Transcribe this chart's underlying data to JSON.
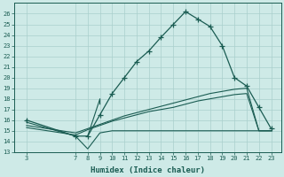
{
  "xlabel": "Humidex (Indice chaleur)",
  "ylabel": "",
  "x_ticks": [
    3,
    7,
    8,
    9,
    10,
    11,
    12,
    13,
    14,
    15,
    16,
    17,
    18,
    19,
    20,
    21,
    22,
    23
  ],
  "ylim": [
    13,
    27
  ],
  "yticks": [
    13,
    14,
    15,
    16,
    17,
    18,
    19,
    20,
    21,
    22,
    23,
    24,
    25,
    26
  ],
  "xlim": [
    2.0,
    23.8
  ],
  "background_color": "#ceeae7",
  "grid_color": "#aacfcc",
  "line_color": "#1a5c52",
  "main_curve_x": [
    3,
    7,
    8,
    9,
    10,
    11,
    12,
    13,
    14,
    15,
    16,
    17,
    18,
    19,
    20,
    21,
    22,
    23
  ],
  "main_curve_y": [
    16.0,
    14.5,
    14.5,
    16.5,
    18.5,
    20.0,
    21.5,
    22.5,
    23.8,
    25.0,
    26.2,
    25.5,
    24.8,
    23.0,
    20.0,
    19.2,
    17.2,
    15.2
  ],
  "line2_x": [
    3,
    7,
    8,
    9,
    10,
    11,
    12,
    13,
    14,
    15,
    16,
    17,
    18,
    19,
    20,
    21,
    22,
    23
  ],
  "line2_y": [
    15.5,
    14.8,
    15.2,
    15.6,
    16.0,
    16.4,
    16.7,
    17.0,
    17.3,
    17.6,
    17.9,
    18.2,
    18.5,
    18.7,
    18.9,
    19.0,
    15.0,
    15.0
  ],
  "line3_x": [
    3,
    7,
    8,
    9,
    10,
    11,
    12,
    13,
    14,
    15,
    16,
    17,
    18,
    19,
    20,
    21,
    22,
    23
  ],
  "line3_y": [
    15.3,
    14.6,
    15.1,
    15.5,
    15.9,
    16.2,
    16.5,
    16.8,
    17.0,
    17.2,
    17.5,
    17.8,
    18.0,
    18.2,
    18.4,
    18.5,
    15.0,
    15.0
  ],
  "line4_x": [
    3,
    7,
    8,
    9,
    10,
    11,
    12,
    13,
    14,
    15,
    16,
    17,
    18,
    19,
    20,
    21,
    22,
    23
  ],
  "line4_y": [
    15.8,
    14.5,
    13.3,
    14.8,
    15.0,
    15.0,
    15.0,
    15.0,
    15.0,
    15.0,
    15.0,
    15.0,
    15.0,
    15.0,
    15.0,
    15.0,
    15.0,
    15.0
  ],
  "small_curve_x": [
    8,
    9,
    9
  ],
  "small_curve_y": [
    14.5,
    18.0,
    17.5
  ]
}
